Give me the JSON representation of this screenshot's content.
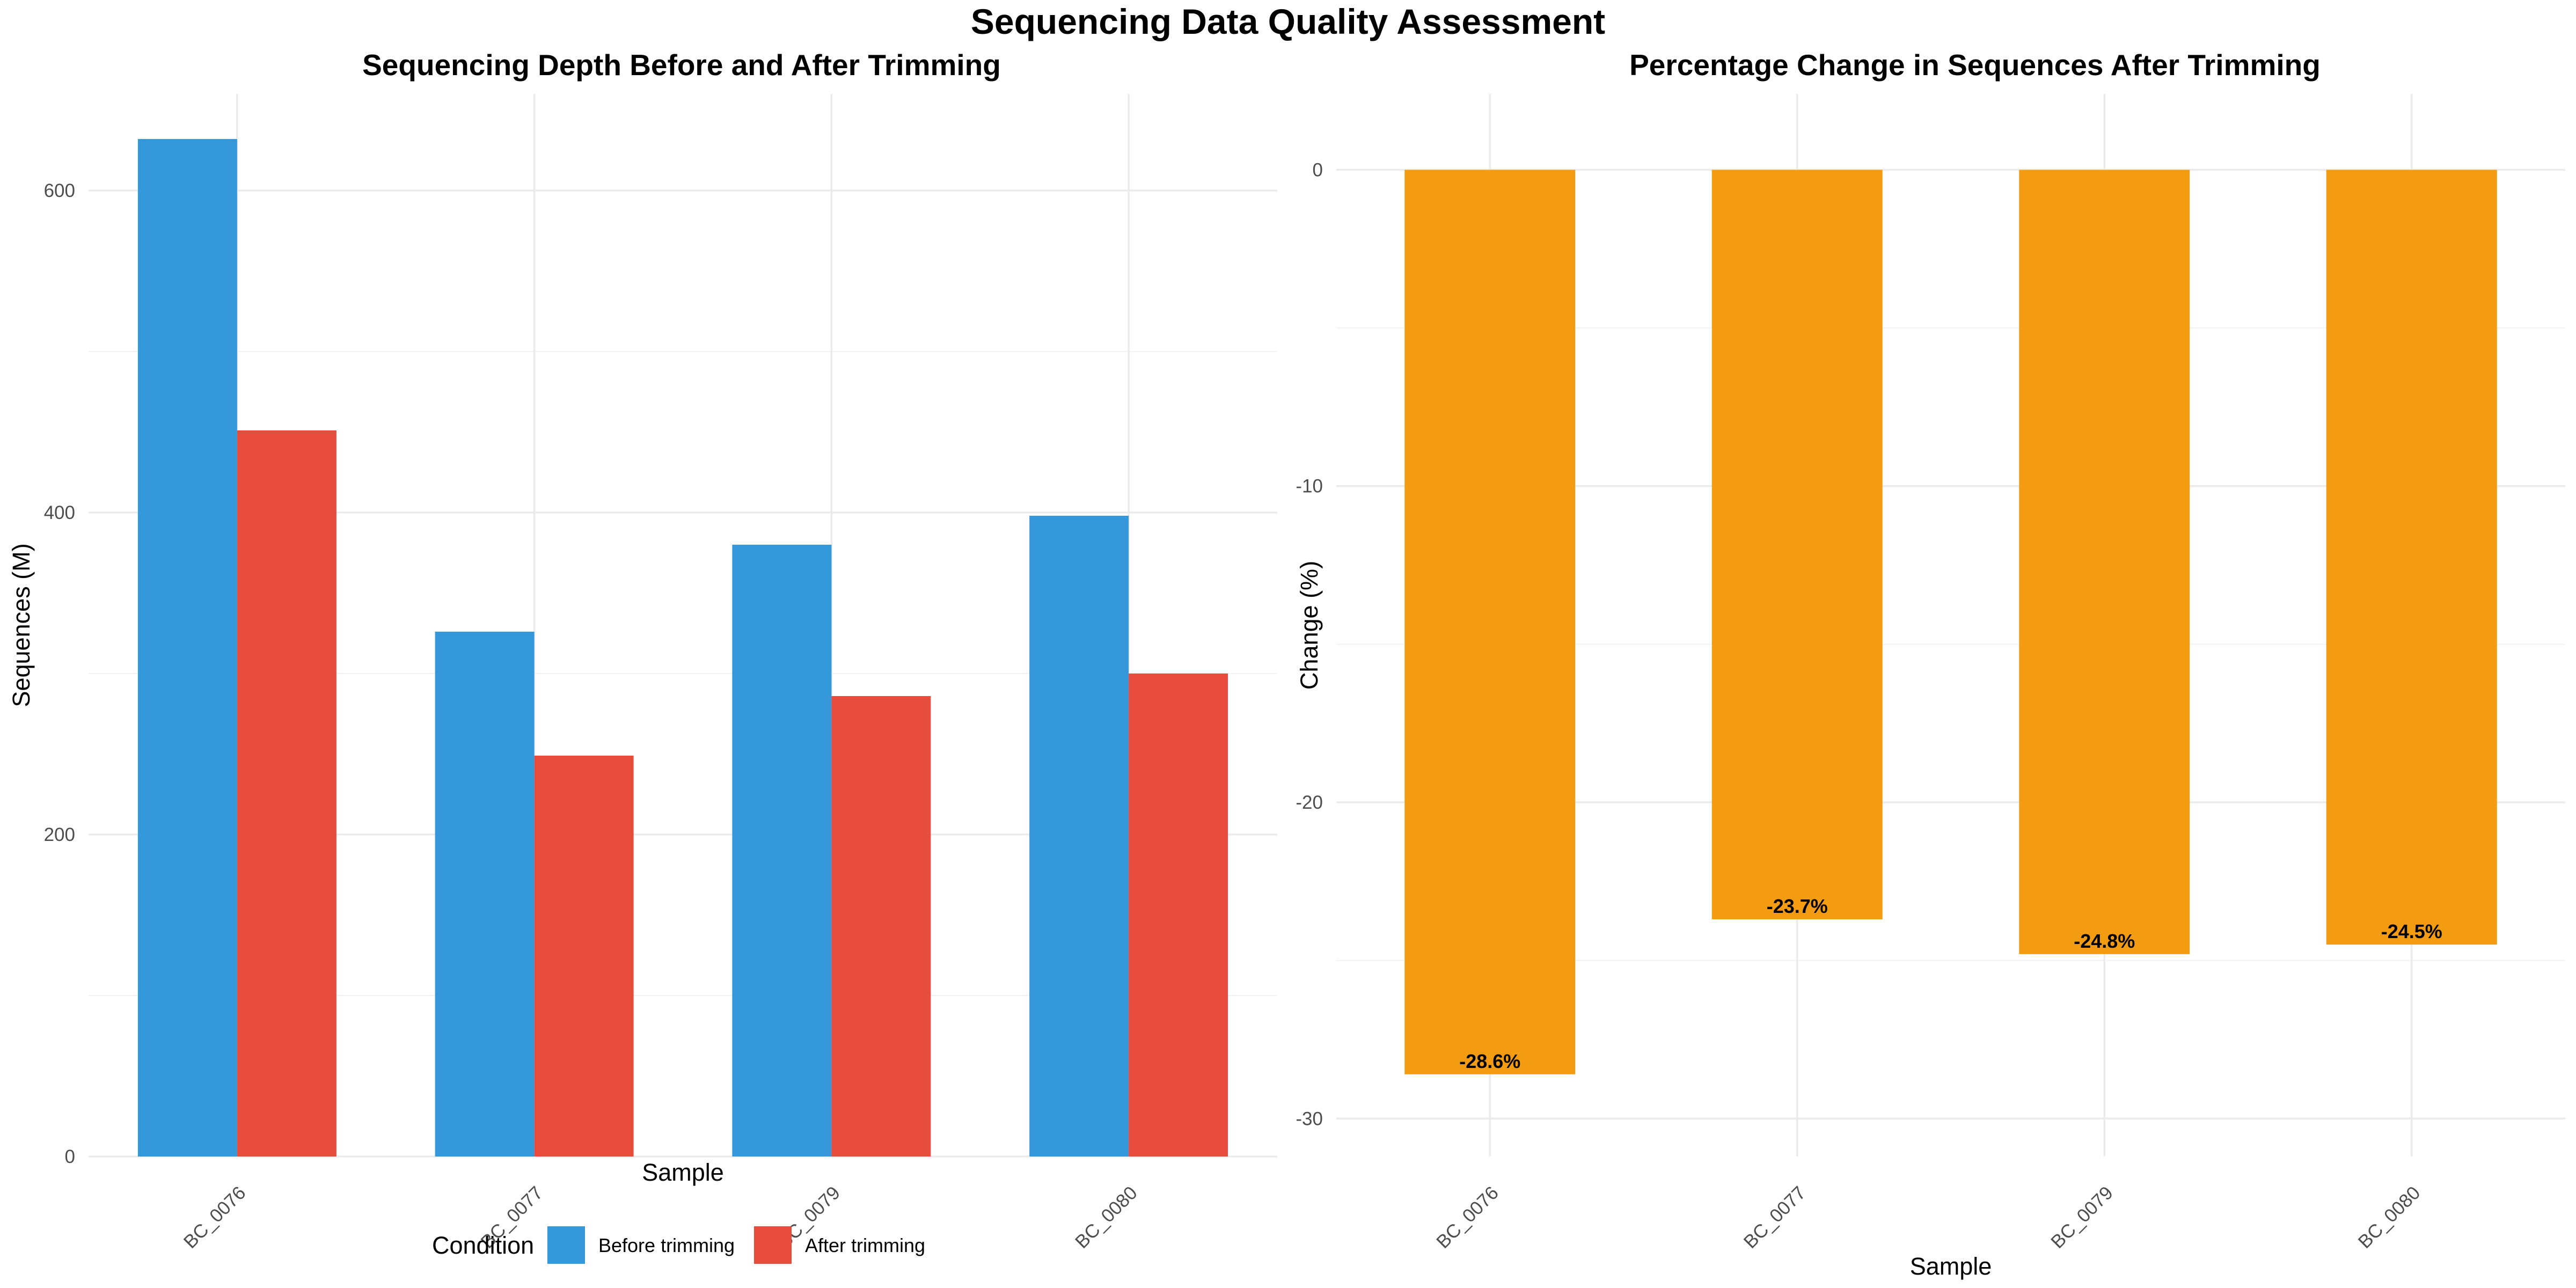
{
  "figure": {
    "title": "Sequencing Data Quality Assessment"
  },
  "chart_data": [
    {
      "type": "bar",
      "title": "Sequencing Depth Before and After Trimming",
      "xlabel": "Sample",
      "ylabel": "Sequences (M)",
      "categories": [
        "BC_0076",
        "BC_0077",
        "BC_0079",
        "BC_0080"
      ],
      "series": [
        {
          "name": "Before trimming",
          "color": "#3498db",
          "values": [
            632,
            326,
            380,
            398
          ]
        },
        {
          "name": "After trimming",
          "color": "#e74c3c",
          "values": [
            451,
            249,
            286,
            300
          ]
        }
      ],
      "ylim": [
        0,
        660
      ],
      "yticks": [
        0,
        200,
        400,
        600
      ],
      "grid": true,
      "legend": {
        "title": "Condition",
        "position": "bottom"
      }
    },
    {
      "type": "bar",
      "title": "Percentage Change in Sequences After Trimming",
      "xlabel": "Sample",
      "ylabel": "Change (%)",
      "categories": [
        "BC_0076",
        "BC_0077",
        "BC_0079",
        "BC_0080"
      ],
      "series": [
        {
          "color": "#f39c12",
          "values": [
            -28.6,
            -23.7,
            -24.8,
            -24.5
          ]
        }
      ],
      "data_labels": [
        "-28.6%",
        "-23.7%",
        "-24.8%",
        "-24.5%"
      ],
      "ylim": [
        -31.2,
        2.4
      ],
      "yticks": [
        0,
        -10,
        -20,
        -30
      ],
      "grid": true
    }
  ]
}
